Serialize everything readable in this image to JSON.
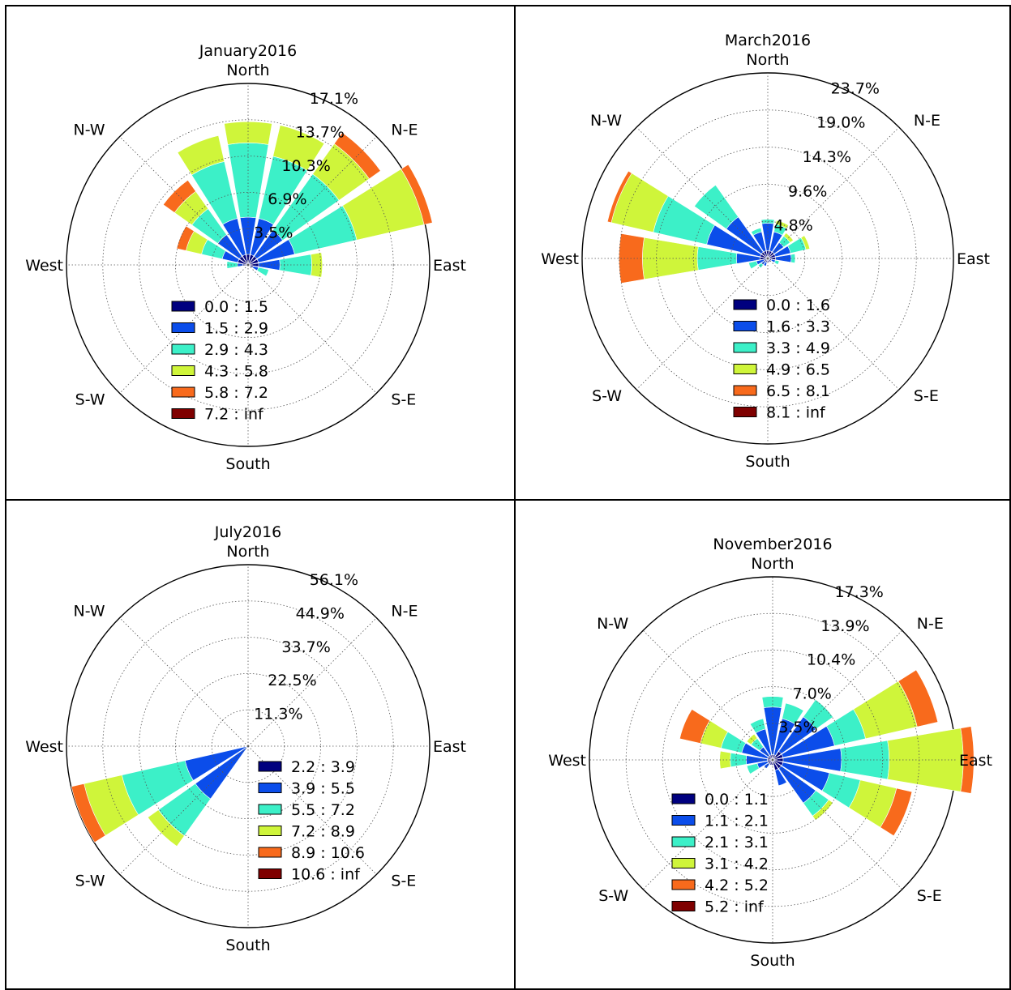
{
  "chart_data": [
    {
      "type": "windrose",
      "title": "January2016",
      "directions": [
        "North",
        "N-E",
        "East",
        "S-E",
        "South",
        "S-W",
        "West",
        "N-W"
      ],
      "ring_labels": [
        "3.5%",
        "6.9%",
        "10.3%",
        "13.7%",
        "17.1%"
      ],
      "rmax_percent": 17.1,
      "legend": [
        "0.0 : 1.5",
        "1.5 : 2.9",
        "2.9 : 4.3",
        "4.3 : 5.8",
        "5.8 : 7.2",
        "7.2 : inf"
      ],
      "sector_angles_deg": [
        0,
        22.5,
        45,
        67.5,
        90,
        112.5,
        135,
        157.5,
        180,
        202.5,
        225,
        247.5,
        270,
        292.5,
        315,
        337.5
      ],
      "sectors_cumulative_percent": [
        [
          1.0,
          4.5,
          11.5,
          13.5,
          13.5,
          13.5
        ],
        [
          1.0,
          4.5,
          10.5,
          13.5,
          13.5,
          13.5
        ],
        [
          1.0,
          4.0,
          10.5,
          14.0,
          15.3,
          15.3
        ],
        [
          1.0,
          4.5,
          10.5,
          17.0,
          17.8,
          17.8
        ],
        [
          1.0,
          3.0,
          6.0,
          7.0,
          7.0,
          7.0
        ],
        [
          0.5,
          1.0,
          2.0,
          2.0,
          2.0,
          2.0
        ],
        [
          0,
          0,
          0,
          0,
          0,
          0
        ],
        [
          0,
          0,
          0,
          0,
          0,
          0
        ],
        [
          0,
          0,
          0,
          0,
          0,
          0
        ],
        [
          0,
          0,
          0,
          0,
          0,
          0
        ],
        [
          0,
          0,
          0,
          0,
          0,
          0
        ],
        [
          0,
          0,
          0,
          0,
          0,
          0
        ],
        [
          0.5,
          1.0,
          2.0,
          2.0,
          2.0,
          2.0
        ],
        [
          1.0,
          2.5,
          4.5,
          6.0,
          6.9,
          6.9
        ],
        [
          1.0,
          3.5,
          6.5,
          8.5,
          9.8,
          9.8
        ],
        [
          1.0,
          4.5,
          10.0,
          12.5,
          12.5,
          12.5
        ]
      ]
    },
    {
      "type": "windrose",
      "title": "March2016",
      "directions": [
        "North",
        "N-E",
        "East",
        "S-E",
        "South",
        "S-W",
        "West",
        "N-W"
      ],
      "ring_labels": [
        "4.8%",
        "9.6%",
        "14.3%",
        "19.0%",
        "23.7%"
      ],
      "rmax_percent": 23.7,
      "legend": [
        "0.0 : 1.6",
        "1.6 : 3.3",
        "3.3 : 4.9",
        "4.9 : 6.5",
        "6.5 : 8.1",
        "8.1 : inf"
      ],
      "sector_angles_deg": [
        0,
        22.5,
        45,
        67.5,
        90,
        112.5,
        135,
        157.5,
        180,
        202.5,
        225,
        247.5,
        270,
        292.5,
        315,
        337.5
      ],
      "sectors_cumulative_percent": [
        [
          1.0,
          4.5,
          5.0,
          5.0,
          5.0,
          5.0
        ],
        [
          1.0,
          3.5,
          4.5,
          5.0,
          5.0,
          5.0
        ],
        [
          1.0,
          2.5,
          3.5,
          4.0,
          4.0,
          4.0
        ],
        [
          1.0,
          3.0,
          5.0,
          5.5,
          5.5,
          5.5
        ],
        [
          1.0,
          3.0,
          3.5,
          3.5,
          3.5,
          3.5
        ],
        [
          0.5,
          1.0,
          1.5,
          1.5,
          1.5,
          1.5
        ],
        [
          0.5,
          0.5,
          0.5,
          0.5,
          0.5,
          0.5
        ],
        [
          0.5,
          0.5,
          0.5,
          0.5,
          0.5,
          0.5
        ],
        [
          0.5,
          0.5,
          0.5,
          0.5,
          0.5,
          0.5
        ],
        [
          0.5,
          1.0,
          1.0,
          1.0,
          1.0,
          1.0
        ],
        [
          0.5,
          1.0,
          1.5,
          1.5,
          1.5,
          1.5
        ],
        [
          0.5,
          1.5,
          2.5,
          2.5,
          2.5,
          2.5
        ],
        [
          1.0,
          4.0,
          9.0,
          16.0,
          19.0,
          19.0
        ],
        [
          1.0,
          8.0,
          15.0,
          20.5,
          21.0,
          21.0
        ],
        [
          1.0,
          6.5,
          11.5,
          11.5,
          11.5,
          11.5
        ],
        [
          1.0,
          3.5,
          4.0,
          4.0,
          4.0,
          4.0
        ]
      ]
    },
    {
      "type": "windrose",
      "title": "July2016",
      "directions": [
        "North",
        "N-E",
        "East",
        "S-E",
        "South",
        "S-W",
        "West",
        "N-W"
      ],
      "ring_labels": [
        "11.3%",
        "22.5%",
        "33.7%",
        "44.9%",
        "56.1%"
      ],
      "rmax_percent": 56.1,
      "legend": [
        "2.2 : 3.9",
        "3.9 : 5.5",
        "5.5 : 7.2",
        "7.2 : 8.9",
        "8.9 : 10.6",
        "10.6 : inf"
      ],
      "sector_angles_deg": [
        0,
        22.5,
        45,
        67.5,
        90,
        112.5,
        135,
        157.5,
        180,
        202.5,
        225,
        247.5,
        270,
        292.5,
        315,
        337.5
      ],
      "sectors_cumulative_percent": [
        [
          0,
          0,
          0,
          0,
          0,
          0
        ],
        [
          0,
          0,
          0,
          0,
          0,
          0
        ],
        [
          0,
          0,
          0,
          0,
          0,
          0
        ],
        [
          0,
          0,
          0,
          0,
          0,
          0
        ],
        [
          0,
          0,
          0,
          0,
          0,
          0
        ],
        [
          0,
          0,
          0,
          0,
          0,
          0
        ],
        [
          0,
          0,
          0,
          0,
          0,
          0
        ],
        [
          0,
          0,
          0,
          0,
          0,
          0
        ],
        [
          0,
          0,
          0,
          0,
          0,
          0
        ],
        [
          0,
          0,
          0,
          0,
          0,
          0
        ],
        [
          0.5,
          20.0,
          34.0,
          38.0,
          38.0,
          38.0
        ],
        [
          0.5,
          20.0,
          40.0,
          52.0,
          56.0,
          56.0
        ],
        [
          0,
          0,
          0,
          0,
          0,
          0
        ],
        [
          0,
          0,
          0,
          0,
          0,
          0
        ],
        [
          0,
          0,
          0,
          0,
          0,
          0
        ],
        [
          0,
          0,
          0,
          0,
          0,
          0
        ]
      ]
    },
    {
      "type": "windrose",
      "title": "November2016",
      "directions": [
        "North",
        "N-E",
        "East",
        "S-E",
        "South",
        "S-W",
        "West",
        "N-W"
      ],
      "ring_labels": [
        "3.5%",
        "7.0%",
        "10.4%",
        "13.9%",
        "17.3%"
      ],
      "rmax_percent": 17.3,
      "legend": [
        "0.0 : 1.1",
        "1.1 : 2.1",
        "2.1 : 3.1",
        "3.1 : 4.2",
        "4.2 : 5.2",
        "5.2 : inf"
      ],
      "sector_angles_deg": [
        0,
        22.5,
        45,
        67.5,
        90,
        112.5,
        135,
        157.5,
        180,
        202.5,
        225,
        247.5,
        270,
        292.5,
        315,
        337.5
      ],
      "sectors_cumulative_percent": [
        [
          0.5,
          5.0,
          6.0,
          6.0,
          6.0,
          6.0
        ],
        [
          0.5,
          4.0,
          5.5,
          5.5,
          5.5,
          5.5
        ],
        [
          1.0,
          5.0,
          7.0,
          7.0,
          7.0,
          7.0
        ],
        [
          1.0,
          6.0,
          9.0,
          14.0,
          16.0,
          16.0
        ],
        [
          1.0,
          6.5,
          11.0,
          18.0,
          19.0,
          19.0
        ],
        [
          1.0,
          5.5,
          8.5,
          12.0,
          13.5,
          13.5
        ],
        [
          1.0,
          5.0,
          6.5,
          7.0,
          7.0,
          7.0
        ],
        [
          1.0,
          2.5,
          2.5,
          2.5,
          2.5,
          2.5
        ],
        [
          0.5,
          0.5,
          0.5,
          0.5,
          0.5,
          0.5
        ],
        [
          0.5,
          0.5,
          0.5,
          0.5,
          0.5,
          0.5
        ],
        [
          0.5,
          1.0,
          1.0,
          1.0,
          1.0,
          1.0
        ],
        [
          0.5,
          1.5,
          2.5,
          2.5,
          2.5,
          2.5
        ],
        [
          0.5,
          2.5,
          4.0,
          5.0,
          5.0,
          5.0
        ],
        [
          0.5,
          3.0,
          5.0,
          7.0,
          9.0,
          9.0
        ],
        [
          0.5,
          1.5,
          2.5,
          3.0,
          3.0,
          3.0
        ],
        [
          0.5,
          3.0,
          4.0,
          4.0,
          4.0,
          4.0
        ]
      ]
    }
  ],
  "colors": [
    "#00007f",
    "#0b4dea",
    "#3cf0c8",
    "#cff53a",
    "#f86a1c",
    "#7f0000"
  ]
}
